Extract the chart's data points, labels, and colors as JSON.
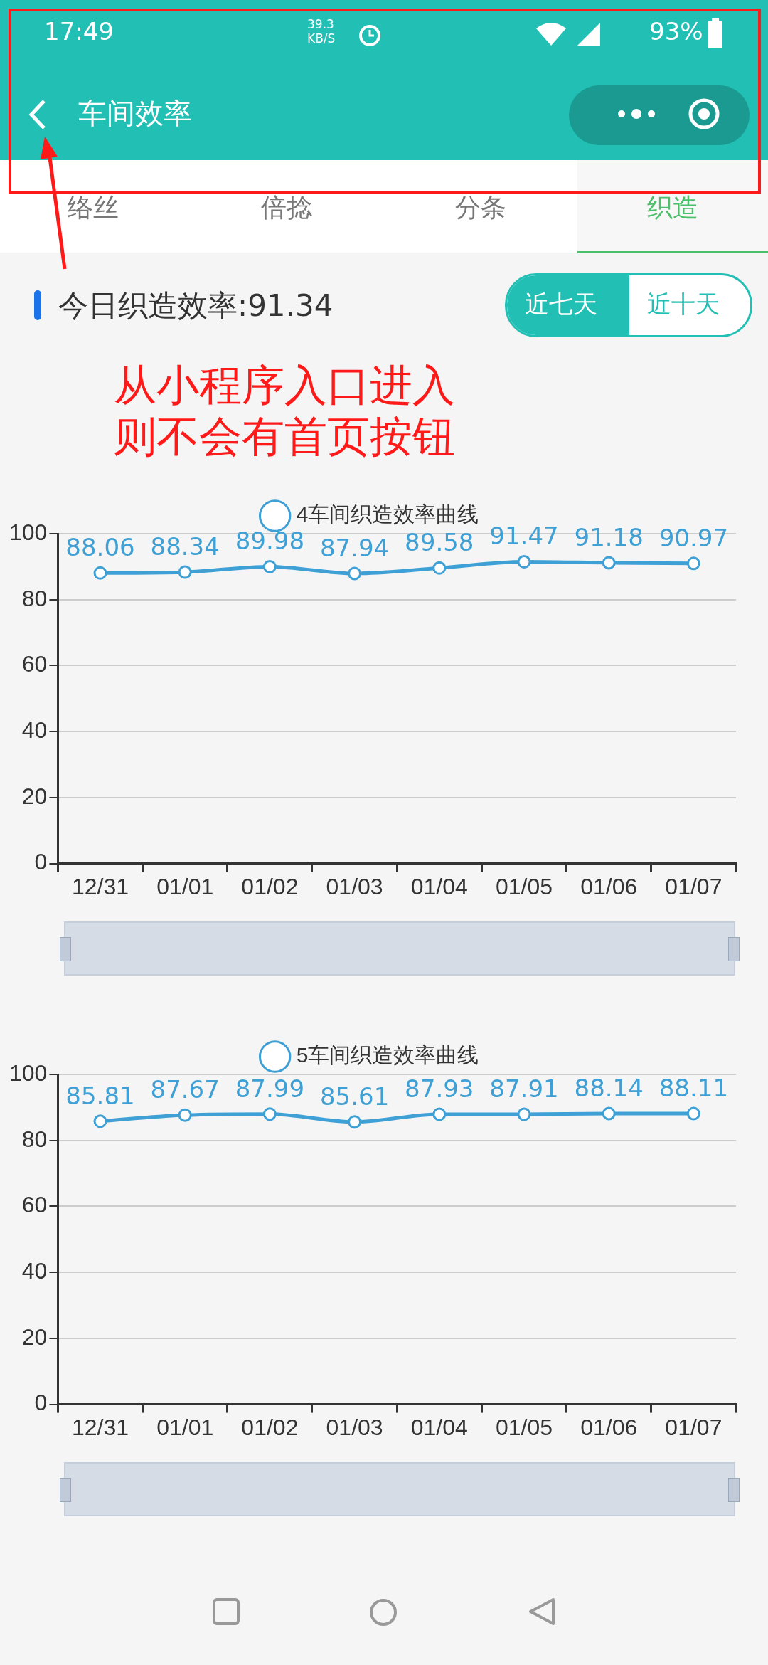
{
  "chart_data": [
    {
      "type": "other",
      "title": "车间效率",
      "annotations": [
        "17:49",
        "39.3 KB/S",
        "93%",
        "络丝",
        "倍捻",
        "分条",
        "织造",
        "今日织造效率:91.34",
        "近七天",
        "近十天",
        "从小程序入口进入则不会有首页按钮"
      ]
    },
    {
      "type": "line",
      "categories": [
        "12/31",
        "01/01",
        "01/02",
        "01/03",
        "01/04",
        "01/05",
        "01/06",
        "01/07"
      ],
      "series": [
        {
          "name": "4车间织造效率曲线",
          "color": "#3fa0d6",
          "values": [
            88.06,
            88.34,
            89.98,
            87.94,
            89.58,
            91.47,
            91.18,
            90.97
          ]
        }
      ],
      "ylim": [
        0,
        100
      ],
      "yticks": [
        0,
        20,
        40,
        60,
        80,
        100
      ],
      "grid": "y",
      "legend": "top",
      "marker": "circle",
      "data_labels": true
    },
    {
      "type": "line",
      "categories": [
        "12/31",
        "01/01",
        "01/02",
        "01/03",
        "01/04",
        "01/05",
        "01/06",
        "01/07"
      ],
      "series": [
        {
          "name": "5车间织造效率曲线",
          "color": "#3fa0d6",
          "values": [
            85.81,
            87.67,
            87.99,
            85.61,
            87.93,
            87.91,
            88.14,
            88.11
          ]
        }
      ],
      "ylim": [
        0,
        100
      ],
      "yticks": [
        0,
        20,
        40,
        60,
        80,
        100
      ],
      "grid": "y",
      "legend": "top",
      "marker": "circle",
      "data_labels": true
    }
  ]
}
